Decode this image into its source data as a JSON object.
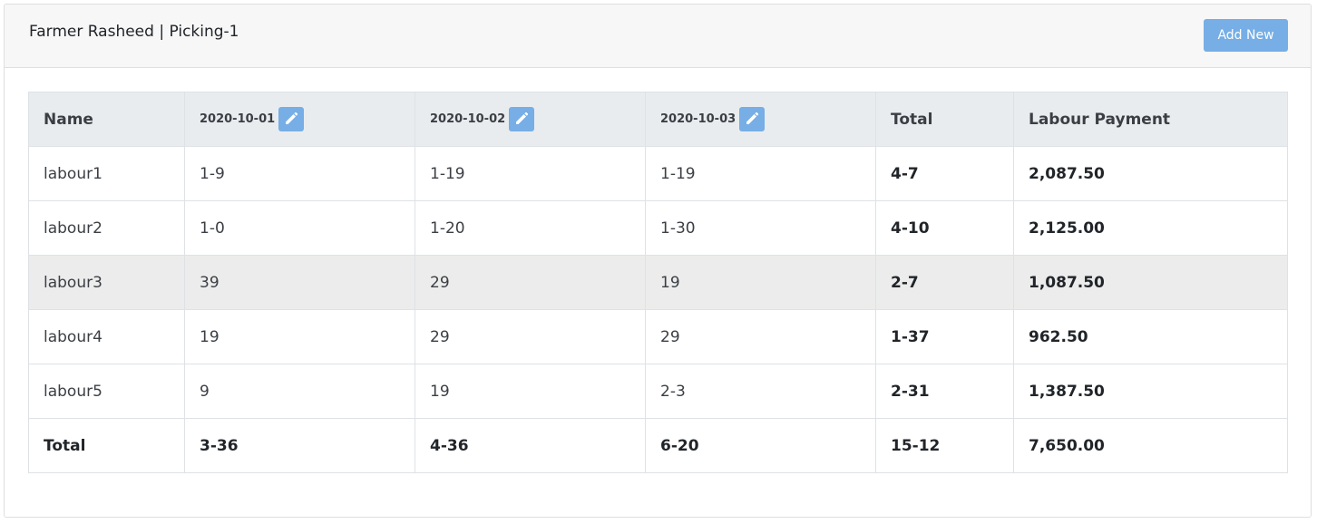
{
  "header": {
    "title": "Farmer Rasheed | Picking-1",
    "add_new_label": "Add New"
  },
  "colors": {
    "accent": "#76aee5",
    "header_bg": "#f7f7f7",
    "table_head_bg": "#e9ecef",
    "highlight_row_bg": "#ececec"
  },
  "table": {
    "columns": [
      {
        "label": "Name"
      },
      {
        "label": "2020-10-01",
        "edit_icon": "pencil-icon"
      },
      {
        "label": "2020-10-02",
        "edit_icon": "pencil-icon"
      },
      {
        "label": "2020-10-03",
        "edit_icon": "pencil-icon"
      },
      {
        "label": "Total"
      },
      {
        "label": "Labour Payment"
      }
    ],
    "rows": [
      {
        "name": "labour1",
        "d1": "1-9",
        "d2": "1-19",
        "d3": "1-19",
        "total": "4-7",
        "payment": "2,087.50"
      },
      {
        "name": "labour2",
        "d1": "1-0",
        "d2": "1-20",
        "d3": "1-30",
        "total": "4-10",
        "payment": "2,125.00"
      },
      {
        "name": "labour3",
        "d1": "39",
        "d2": "29",
        "d3": "19",
        "total": "2-7",
        "payment": "1,087.50"
      },
      {
        "name": "labour4",
        "d1": "19",
        "d2": "29",
        "d3": "29",
        "total": "1-37",
        "payment": "962.50"
      },
      {
        "name": "labour5",
        "d1": "9",
        "d2": "19",
        "d3": "2-3",
        "total": "2-31",
        "payment": "1,387.50"
      }
    ],
    "totals": {
      "label": "Total",
      "d1": "3-36",
      "d2": "4-36",
      "d3": "6-20",
      "total": "15-12",
      "payment": "7,650.00"
    }
  }
}
